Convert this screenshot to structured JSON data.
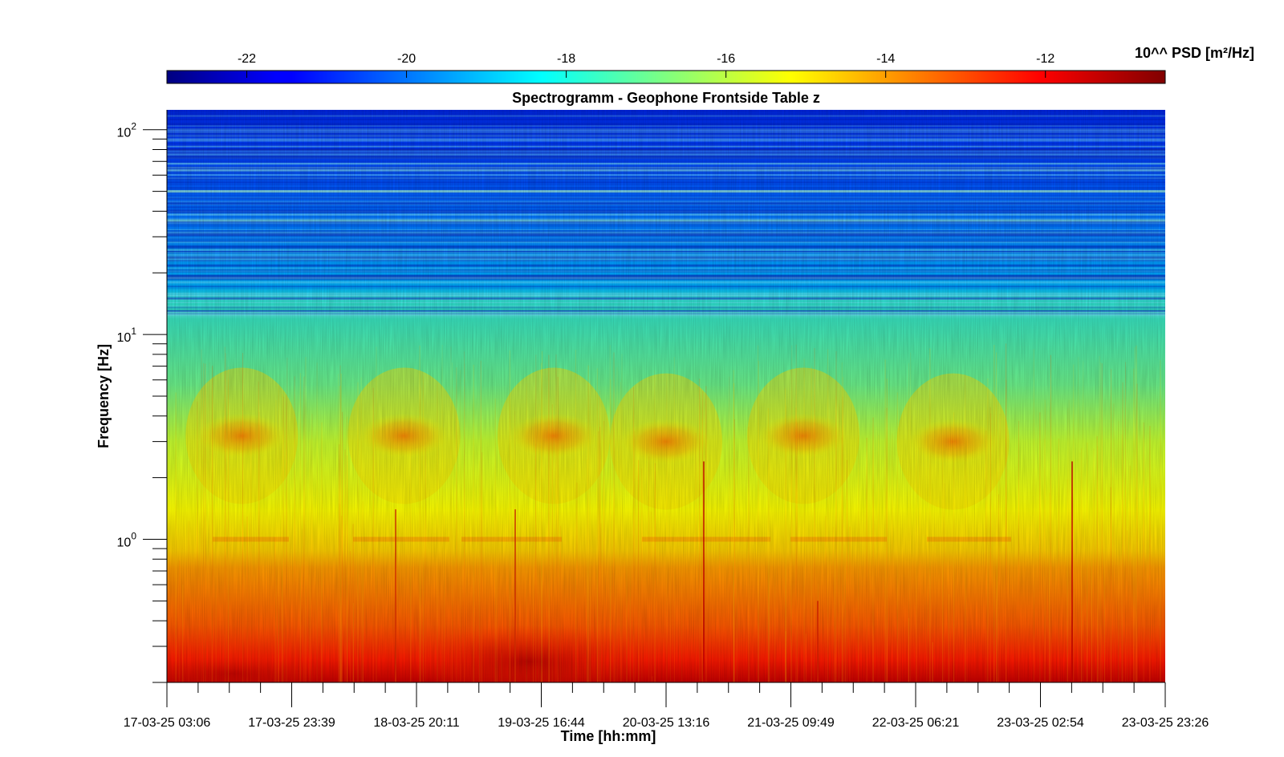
{
  "chart_data": {
    "type": "heatmap",
    "title": "Spectrogramm - Geophone Frontside Table z",
    "xlabel": "Time [hh:mm]",
    "ylabel": "Frequency [Hz]",
    "x_tick_labels": [
      "17-03-25 03:06",
      "17-03-25 23:39",
      "18-03-25 20:11",
      "19-03-25 16:44",
      "20-03-25 13:16",
      "21-03-25 09:49",
      "22-03-25 06:21",
      "23-03-25 02:54",
      "23-03-25 23:26"
    ],
    "y_scale": "log",
    "y_range": [
      0.2,
      125
    ],
    "y_ticks": [
      {
        "value": 1,
        "base": "10",
        "exp": "0"
      },
      {
        "value": 10,
        "base": "10",
        "exp": "1"
      },
      {
        "value": 100,
        "base": "10",
        "exp": "2"
      }
    ],
    "colorbar": {
      "label": "10^^ PSD [m²/Hz]",
      "range": [
        -23,
        -10.5
      ],
      "ticks": [
        -22,
        -20,
        -18,
        -16,
        -14,
        -12
      ],
      "colormap": "jet"
    },
    "zone_levels": [
      {
        "freq": 125,
        "psd": -21.6
      },
      {
        "freq": 80,
        "psd": -21.0
      },
      {
        "freq": 40,
        "psd": -20.6
      },
      {
        "freq": 16,
        "psd": -19.5
      },
      {
        "freq": 12,
        "psd": -18.3
      },
      {
        "freq": 5,
        "psd": -17.4
      },
      {
        "freq": 1.5,
        "psd": -15.8
      },
      {
        "freq": 1.0,
        "psd": -15.3
      },
      {
        "freq": 0.75,
        "psd": -14.2
      },
      {
        "freq": 0.4,
        "psd": -13.0
      },
      {
        "freq": 0.2,
        "psd": -11.6
      }
    ],
    "activity_bursts": [
      {
        "time_index": 0.6,
        "freq": 3.2,
        "psd": -13.5
      },
      {
        "time_index": 1.9,
        "freq": 3.2,
        "psd": -13.6
      },
      {
        "time_index": 3.1,
        "freq": 3.2,
        "psd": -13.7
      },
      {
        "time_index": 4.0,
        "freq": 3.0,
        "psd": -14.5
      },
      {
        "time_index": 5.1,
        "freq": 3.2,
        "psd": -13.5
      },
      {
        "time_index": 6.3,
        "freq": 3.0,
        "psd": -14.5
      }
    ]
  }
}
